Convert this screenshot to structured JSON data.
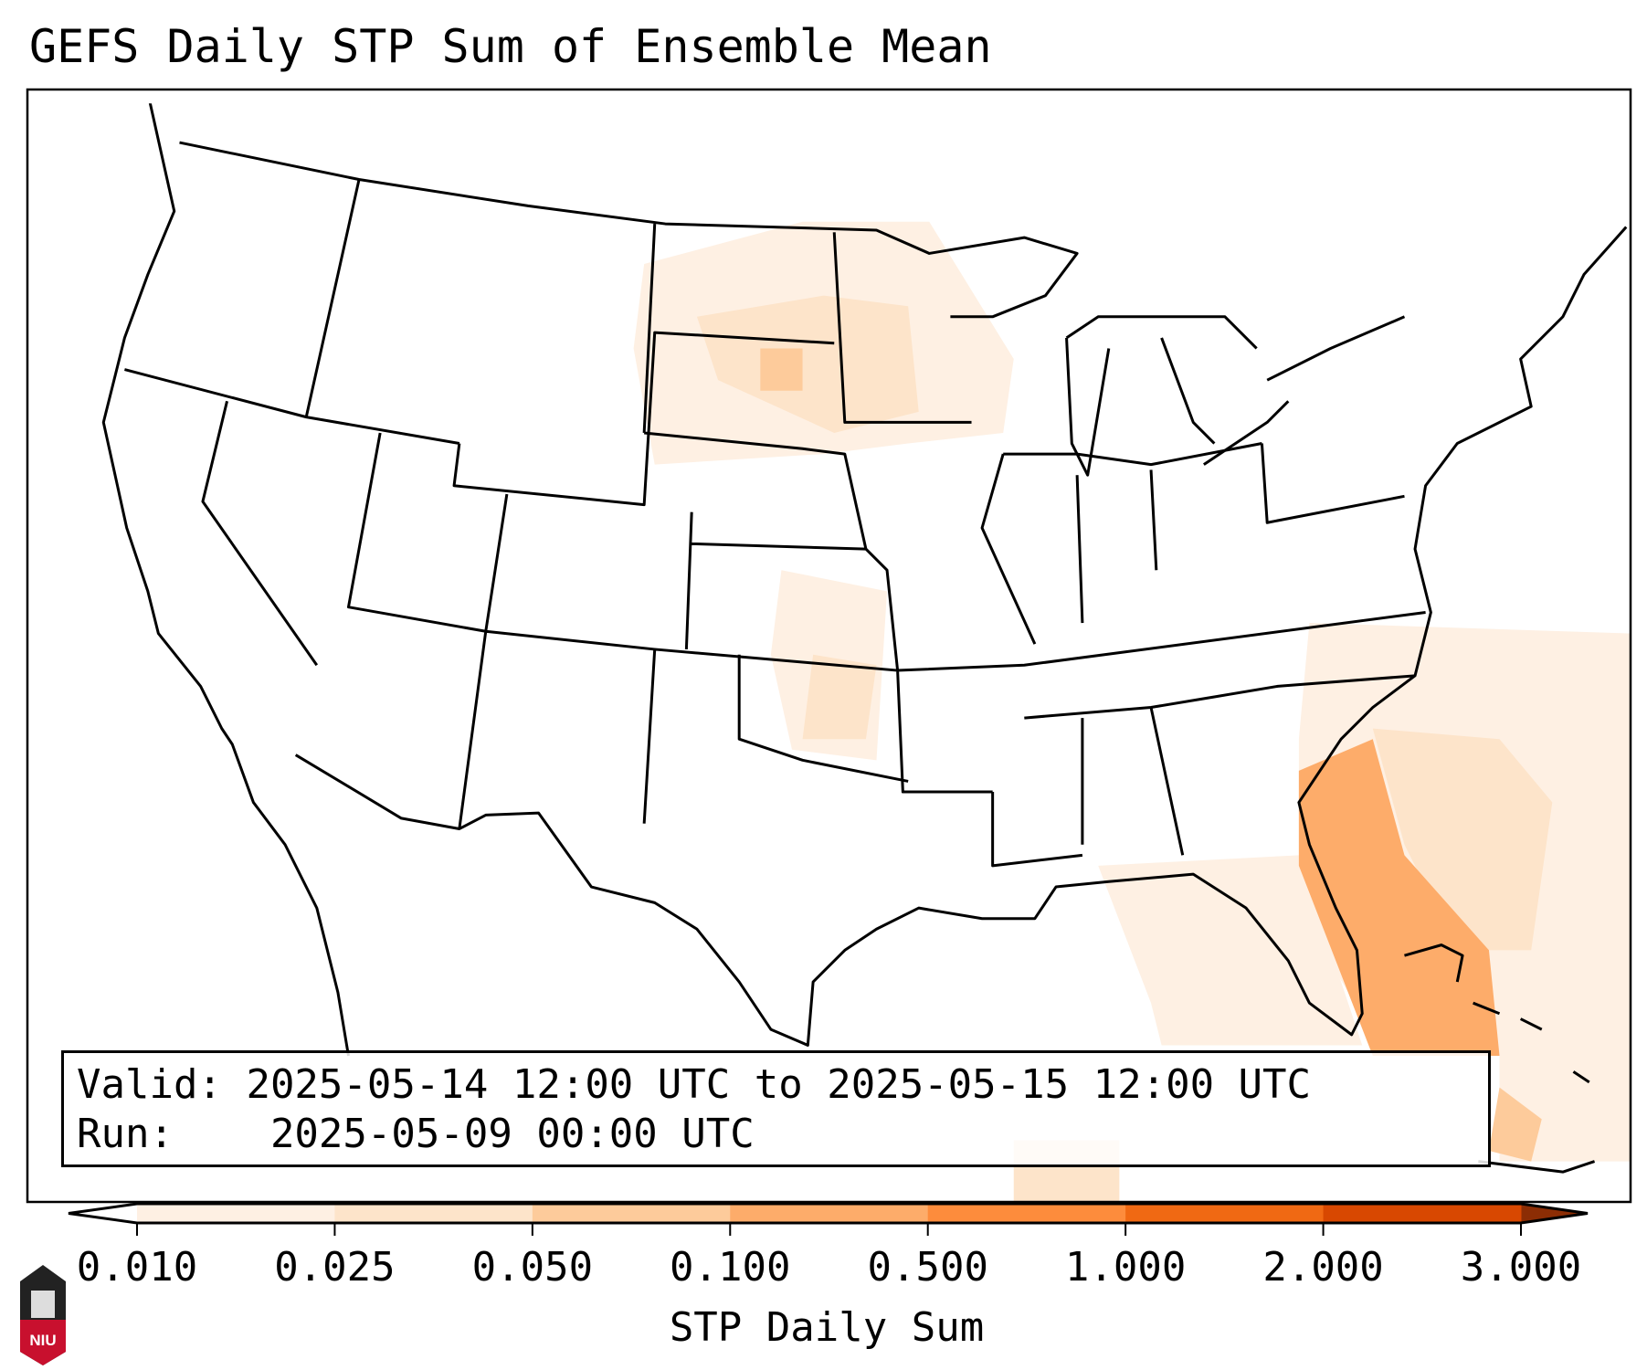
{
  "title": "GEFS Daily STP Sum of Ensemble Mean",
  "legend": {
    "valid_label": "Valid:",
    "valid_value": "2025-05-14 12:00 UTC to 2025-05-15 12:00 UTC",
    "run_label": "Run:",
    "run_value": "2025-05-09 00:00 UTC"
  },
  "colorbar": {
    "label": "STP Daily Sum",
    "ticks": [
      "0.010",
      "0.025",
      "0.050",
      "0.100",
      "0.500",
      "1.000",
      "2.000",
      "3.000"
    ],
    "colors": [
      "#fef0e3",
      "#fde4ca",
      "#fdcb9b",
      "#fdac6a",
      "#fd8c3c",
      "#f06913",
      "#d84801"
    ],
    "under_color": "#ffffff",
    "over_color": "#8c2d04"
  },
  "logo": {
    "text": "NIU"
  },
  "chart_data": {
    "type": "heatmap",
    "title": "GEFS Daily STP Sum of Ensemble Mean",
    "colorbar_label": "STP Daily Sum",
    "levels": [
      0.01,
      0.025,
      0.05,
      0.1,
      0.5,
      1.0,
      2.0,
      3.0
    ],
    "max_region": "Florida east coast / western Atlantic, 0.100-0.500",
    "light_regions": [
      "Dakotas/Minnesota 0.010-0.050",
      "Kansas/Oklahoma 0.010-0.050",
      "Gulf coast and western Atlantic 0.010-0.100"
    ]
  }
}
